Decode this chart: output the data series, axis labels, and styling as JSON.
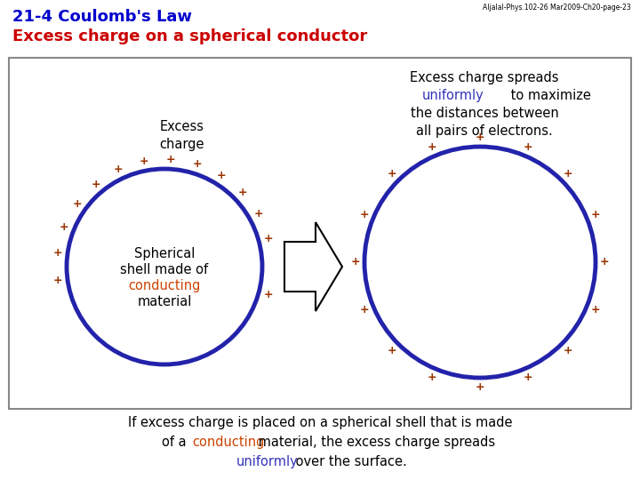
{
  "title_line1": "21-4 Coulomb's Law",
  "title_line2": "Excess charge on a spherical conductor",
  "title_color1": "#0000cc",
  "title_color2": "#cc0000",
  "watermark": "Aljalal-Phys.102-26 Mar2009-Ch20-page-23",
  "circle_color": "#2222aa",
  "circle_lw": 3.5,
  "plus_color": "#993300",
  "left_inner_line1": "Spherical",
  "left_inner_line2": "shell made of",
  "left_inner_line3": "conducting",
  "left_inner_line4": "material",
  "right_text_line1": "Excess charge spreads",
  "right_text_line2": "uniformly",
  "right_text_line3": " to maximize",
  "right_text_line4": "the distances between",
  "right_text_line5": "all pairs of electrons.",
  "bottom_text_line1": "If excess charge is placed on a spherical shell that is made",
  "bottom_text_word2a": "of a ",
  "bottom_text_word_conducting": "conducting",
  "bottom_text_line2b": " material, the excess charge spreads",
  "bottom_text_line3": "uniformly",
  "bottom_text_line3b": " over the surface.",
  "conducting_color": "#cc4400",
  "uniformly_color": "#3333bb",
  "box_border": "#888888"
}
